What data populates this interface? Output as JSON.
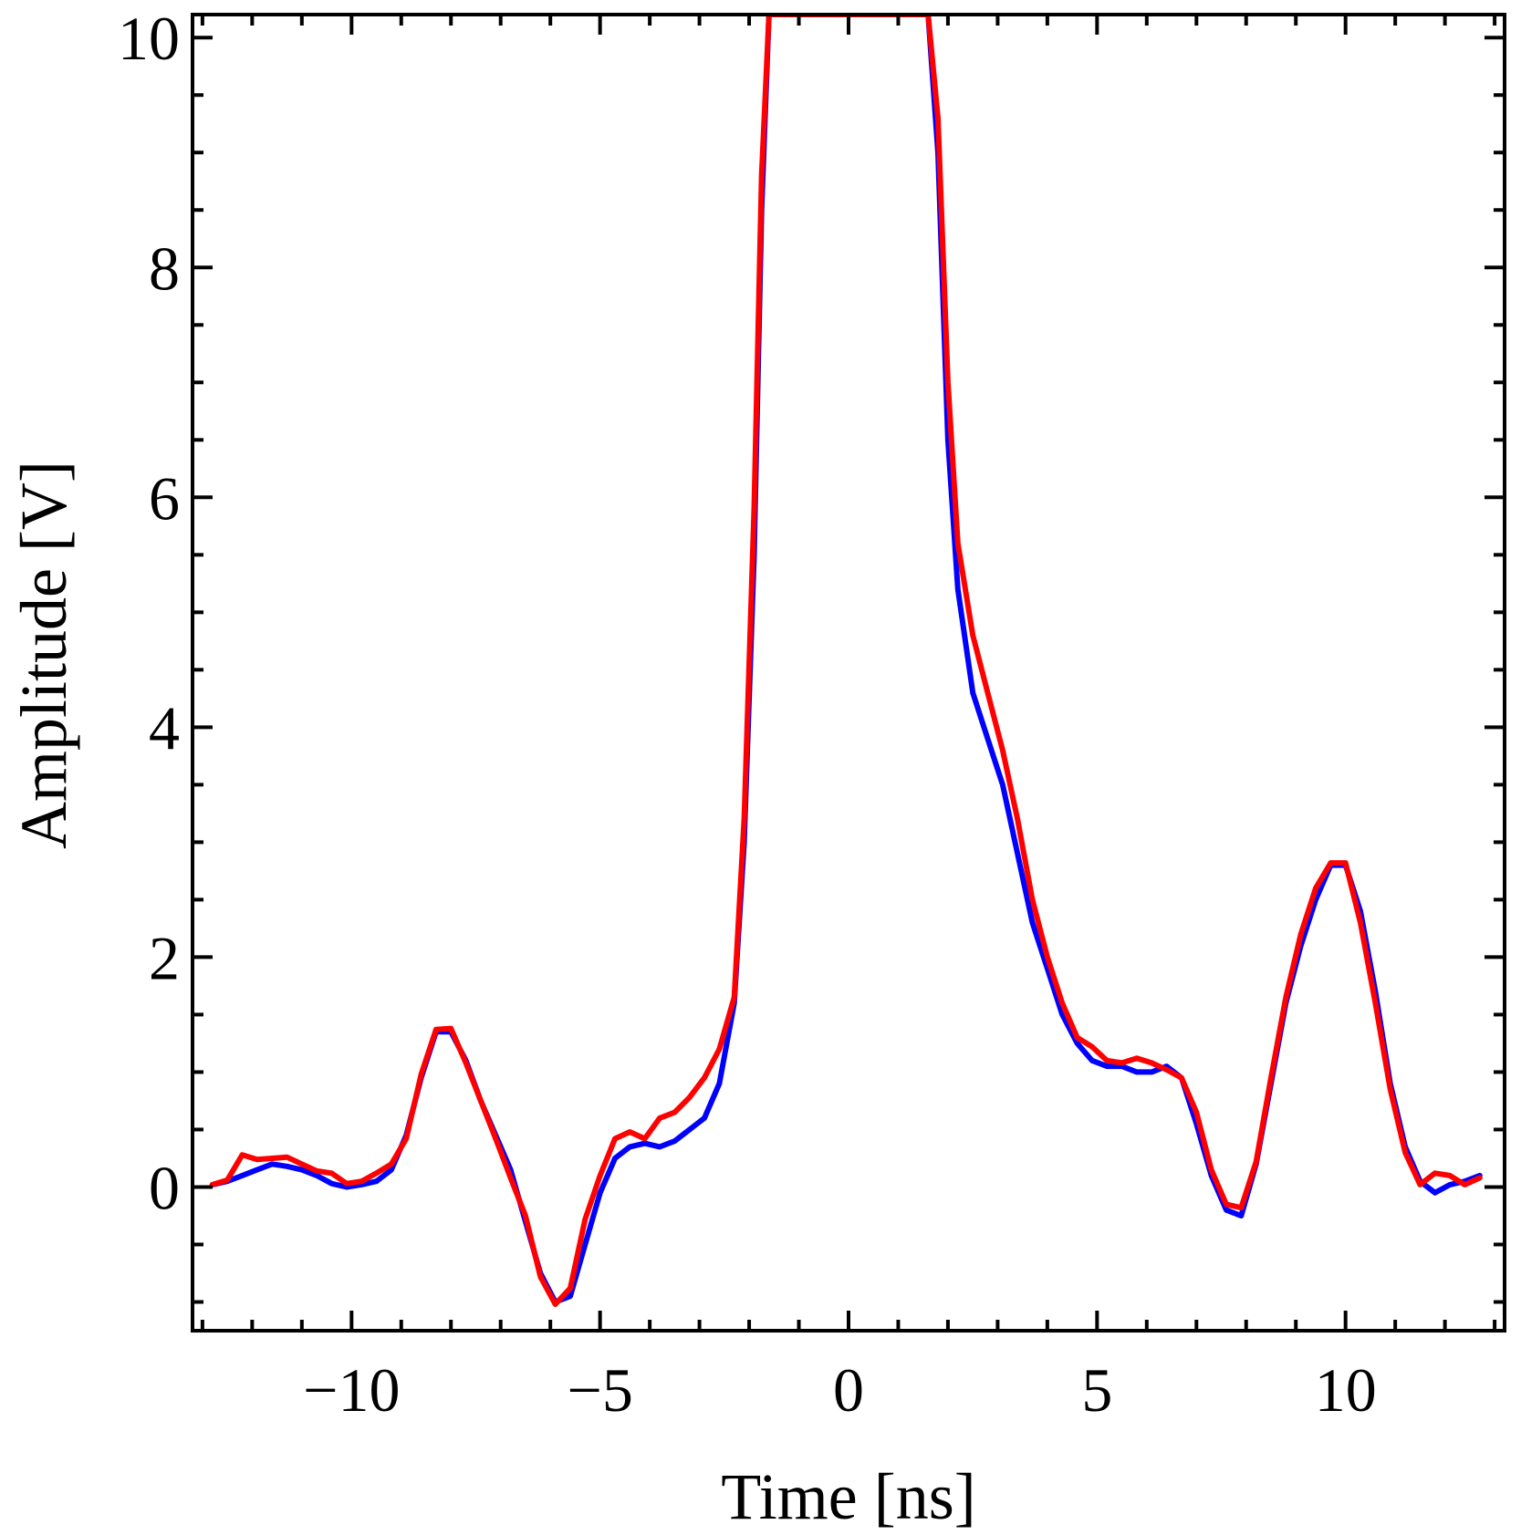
{
  "chart_data": {
    "type": "line",
    "xlabel": "Time [ns]",
    "ylabel": "Amplitude [V]",
    "xlim": [
      -13.2,
      13.2
    ],
    "ylim": [
      -1.25,
      10.2
    ],
    "xticks": [
      -10,
      -5,
      0,
      5,
      10
    ],
    "xtick_labels": [
      "−10",
      "−5",
      "0",
      "5",
      "10"
    ],
    "yticks": [
      0,
      2,
      4,
      6,
      8,
      10
    ],
    "ytick_labels": [
      "0",
      "2",
      "4",
      "6",
      "8",
      "10"
    ],
    "grid": false,
    "series": [
      {
        "color": "#0000ff",
        "x": [
          -12.8,
          -12.5,
          -12.2,
          -11.9,
          -11.6,
          -11.3,
          -11.0,
          -10.7,
          -10.4,
          -10.1,
          -9.8,
          -9.5,
          -9.2,
          -8.9,
          -8.6,
          -8.3,
          -8.0,
          -7.7,
          -7.4,
          -7.1,
          -6.8,
          -6.5,
          -6.2,
          -5.9,
          -5.6,
          -5.3,
          -5.0,
          -4.7,
          -4.4,
          -4.1,
          -3.8,
          -3.5,
          -3.2,
          -2.9,
          -2.6,
          -2.3,
          -2.1,
          -1.9,
          -1.75,
          -1.6,
          1.6,
          1.8,
          2.0,
          2.2,
          2.5,
          2.8,
          3.1,
          3.4,
          3.7,
          4.0,
          4.3,
          4.6,
          4.9,
          5.2,
          5.5,
          5.8,
          6.1,
          6.4,
          6.7,
          7.0,
          7.3,
          7.6,
          7.9,
          8.2,
          8.5,
          8.8,
          9.1,
          9.4,
          9.7,
          10.0,
          10.3,
          10.6,
          10.9,
          11.2,
          11.5,
          11.8,
          12.1,
          12.4,
          12.7
        ],
        "y": [
          0.02,
          0.05,
          0.1,
          0.15,
          0.2,
          0.18,
          0.15,
          0.1,
          0.03,
          0.0,
          0.02,
          0.05,
          0.15,
          0.45,
          0.95,
          1.35,
          1.35,
          1.1,
          0.75,
          0.45,
          0.15,
          -0.3,
          -0.75,
          -1.0,
          -0.95,
          -0.5,
          -0.05,
          0.25,
          0.35,
          0.38,
          0.35,
          0.4,
          0.5,
          0.6,
          0.9,
          1.6,
          3.0,
          5.5,
          8.5,
          10.2,
          10.2,
          9.0,
          6.5,
          5.2,
          4.3,
          3.9,
          3.5,
          2.9,
          2.3,
          1.9,
          1.5,
          1.25,
          1.1,
          1.05,
          1.05,
          1.0,
          1.0,
          1.05,
          0.95,
          0.55,
          0.1,
          -0.2,
          -0.25,
          0.2,
          0.9,
          1.6,
          2.1,
          2.5,
          2.8,
          2.8,
          2.4,
          1.7,
          0.9,
          0.35,
          0.05,
          -0.05,
          0.02,
          0.05,
          0.1
        ]
      },
      {
        "color": "#ff0000",
        "x": [
          -12.8,
          -12.5,
          -12.2,
          -11.9,
          -11.6,
          -11.3,
          -11.0,
          -10.7,
          -10.4,
          -10.1,
          -9.8,
          -9.5,
          -9.2,
          -8.9,
          -8.6,
          -8.3,
          -8.0,
          -7.7,
          -7.4,
          -7.1,
          -6.8,
          -6.5,
          -6.2,
          -5.9,
          -5.6,
          -5.3,
          -5.0,
          -4.7,
          -4.4,
          -4.1,
          -3.8,
          -3.5,
          -3.2,
          -2.9,
          -2.6,
          -2.3,
          -2.1,
          -1.9,
          -1.75,
          -1.6,
          1.6,
          1.8,
          2.0,
          2.2,
          2.5,
          2.8,
          3.1,
          3.4,
          3.7,
          4.0,
          4.3,
          4.6,
          4.9,
          5.2,
          5.5,
          5.8,
          6.1,
          6.4,
          6.7,
          7.0,
          7.3,
          7.6,
          7.9,
          8.2,
          8.5,
          8.8,
          9.1,
          9.4,
          9.7,
          10.0,
          10.3,
          10.6,
          10.9,
          11.2,
          11.5,
          11.8,
          12.1,
          12.4,
          12.7
        ],
        "y": [
          0.02,
          0.06,
          0.28,
          0.24,
          0.25,
          0.26,
          0.2,
          0.14,
          0.12,
          0.03,
          0.05,
          0.12,
          0.2,
          0.42,
          0.98,
          1.37,
          1.38,
          1.08,
          0.75,
          0.42,
          0.08,
          -0.25,
          -0.78,
          -1.02,
          -0.88,
          -0.28,
          0.1,
          0.42,
          0.48,
          0.42,
          0.6,
          0.65,
          0.78,
          0.95,
          1.2,
          1.65,
          3.2,
          5.9,
          8.8,
          10.2,
          10.2,
          9.3,
          7.0,
          5.6,
          4.8,
          4.3,
          3.8,
          3.2,
          2.5,
          2.0,
          1.6,
          1.3,
          1.22,
          1.1,
          1.08,
          1.12,
          1.08,
          1.02,
          0.95,
          0.65,
          0.15,
          -0.15,
          -0.18,
          0.22,
          0.95,
          1.65,
          2.2,
          2.6,
          2.82,
          2.82,
          2.3,
          1.6,
          0.85,
          0.3,
          0.02,
          0.12,
          0.1,
          0.02,
          0.08
        ]
      }
    ]
  }
}
